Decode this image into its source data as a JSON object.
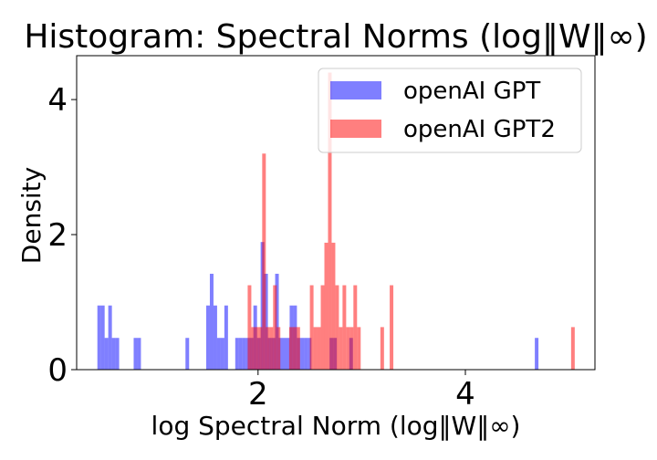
{
  "chart_data": {
    "type": "histogram",
    "title": "Histogram: Spectral Norms (log‖W‖∞)",
    "xlabel": "log Spectral Norm (log‖W‖∞)",
    "ylabel": "Density",
    "xlim": [
      0.25,
      5.25
    ],
    "ylim": [
      0,
      4.65
    ],
    "x_ticks": [
      2,
      4
    ],
    "x_tick_labels": [
      "2",
      "4"
    ],
    "y_ticks": [
      0,
      2,
      4
    ],
    "y_tick_labels": [
      "0",
      "2",
      "4"
    ],
    "grid": false,
    "legend_position": "top-right",
    "bin_width": 0.035,
    "series": [
      {
        "name": "openAI GPT",
        "color": "#0000ff",
        "alpha": 0.5,
        "bins": [
          {
            "x": 0.45,
            "y": 0.95
          },
          {
            "x": 0.485,
            "y": 0.95
          },
          {
            "x": 0.52,
            "y": 0.47
          },
          {
            "x": 0.555,
            "y": 0.95
          },
          {
            "x": 0.59,
            "y": 0.47
          },
          {
            "x": 0.625,
            "y": 0.47
          },
          {
            "x": 0.8,
            "y": 0.47
          },
          {
            "x": 0.835,
            "y": 0.47
          },
          {
            "x": 1.3,
            "y": 0.47
          },
          {
            "x": 1.5,
            "y": 0.95
          },
          {
            "x": 1.535,
            "y": 1.42
          },
          {
            "x": 1.57,
            "y": 0.95
          },
          {
            "x": 1.605,
            "y": 0.47
          },
          {
            "x": 1.64,
            "y": 0.47
          },
          {
            "x": 1.675,
            "y": 0.95
          },
          {
            "x": 1.78,
            "y": 0.47
          },
          {
            "x": 1.815,
            "y": 0.47
          },
          {
            "x": 1.85,
            "y": 0.47
          },
          {
            "x": 1.885,
            "y": 0.47
          },
          {
            "x": 1.92,
            "y": 0.47
          },
          {
            "x": 1.955,
            "y": 0.95
          },
          {
            "x": 1.99,
            "y": 0.47
          },
          {
            "x": 2.025,
            "y": 1.89
          },
          {
            "x": 2.06,
            "y": 1.42
          },
          {
            "x": 2.095,
            "y": 0.47
          },
          {
            "x": 2.13,
            "y": 0.47
          },
          {
            "x": 2.165,
            "y": 1.42
          },
          {
            "x": 2.2,
            "y": 0.47
          },
          {
            "x": 2.235,
            "y": 0.47
          },
          {
            "x": 2.27,
            "y": 0.47
          },
          {
            "x": 2.305,
            "y": 0.95
          },
          {
            "x": 2.34,
            "y": 0.95
          },
          {
            "x": 2.375,
            "y": 0.47
          },
          {
            "x": 2.41,
            "y": 0.47
          },
          {
            "x": 2.445,
            "y": 0.47
          },
          {
            "x": 2.48,
            "y": 0.47
          },
          {
            "x": 2.69,
            "y": 0.47
          },
          {
            "x": 2.725,
            "y": 0.47
          },
          {
            "x": 2.88,
            "y": 0.47
          },
          {
            "x": 4.67,
            "y": 0.47
          }
        ]
      },
      {
        "name": "openAI GPT2",
        "color": "#ff0000",
        "alpha": 0.5,
        "bins": [
          {
            "x": 1.9,
            "y": 1.25
          },
          {
            "x": 1.935,
            "y": 0.63
          },
          {
            "x": 1.97,
            "y": 0.63
          },
          {
            "x": 2.005,
            "y": 0.63
          },
          {
            "x": 2.04,
            "y": 3.2
          },
          {
            "x": 2.075,
            "y": 0.63
          },
          {
            "x": 2.11,
            "y": 0.63
          },
          {
            "x": 2.145,
            "y": 1.25
          },
          {
            "x": 2.18,
            "y": 0.63
          },
          {
            "x": 2.3,
            "y": 0.63
          },
          {
            "x": 2.335,
            "y": 0.63
          },
          {
            "x": 2.37,
            "y": 0.63
          },
          {
            "x": 2.5,
            "y": 1.25
          },
          {
            "x": 2.535,
            "y": 0.63
          },
          {
            "x": 2.57,
            "y": 0.63
          },
          {
            "x": 2.605,
            "y": 1.25
          },
          {
            "x": 2.64,
            "y": 1.88
          },
          {
            "x": 2.675,
            "y": 4.4
          },
          {
            "x": 2.71,
            "y": 1.88
          },
          {
            "x": 2.745,
            "y": 1.25
          },
          {
            "x": 2.78,
            "y": 0.63
          },
          {
            "x": 2.815,
            "y": 1.25
          },
          {
            "x": 2.85,
            "y": 0.63
          },
          {
            "x": 2.885,
            "y": 0.63
          },
          {
            "x": 2.92,
            "y": 1.25
          },
          {
            "x": 2.955,
            "y": 0.63
          },
          {
            "x": 3.18,
            "y": 0.63
          },
          {
            "x": 3.27,
            "y": 1.25
          },
          {
            "x": 5.02,
            "y": 0.63
          }
        ]
      }
    ]
  }
}
